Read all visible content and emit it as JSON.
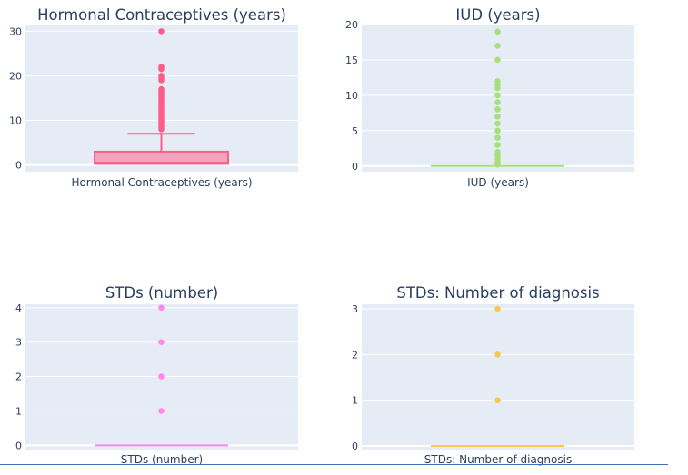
{
  "chart_data": [
    {
      "type": "box",
      "title": "Hormonal Contraceptives (years)",
      "xlabel": "Hormonal Contraceptives (years)",
      "ylim": [
        -1.5,
        31.5
      ],
      "yticks": [
        0,
        10,
        20,
        30
      ],
      "color": "#ff5c8a",
      "fill": "#f3a5bf",
      "box": {
        "q1": 0.25,
        "median": 0.5,
        "q3": 3,
        "lower_whisker": 0,
        "upper_whisker": 7
      },
      "outliers": [
        8,
        8.5,
        9,
        9.5,
        10,
        10.5,
        11,
        11.5,
        12,
        12.5,
        13,
        13.5,
        14,
        14.5,
        15,
        15.5,
        16,
        16.5,
        17,
        19,
        19.5,
        20,
        21.5,
        22,
        30
      ]
    },
    {
      "type": "box",
      "title": "IUD (years)",
      "xlabel": "IUD (years)",
      "ylim": [
        -0.8,
        20
      ],
      "yticks": [
        0,
        5,
        10,
        15,
        20
      ],
      "color": "#a6e07c",
      "fill": "#a6e07c",
      "box": {
        "q1": 0,
        "median": 0,
        "q3": 0,
        "lower_whisker": 0,
        "upper_whisker": 0
      },
      "outliers": [
        0.2,
        0.5,
        1,
        1.5,
        2,
        3,
        4,
        5,
        6,
        7,
        8,
        9,
        10,
        11,
        11.5,
        12,
        15,
        17,
        19
      ]
    },
    {
      "type": "box",
      "title": "STDs (number)",
      "xlabel": "STDs (number)",
      "ylim": [
        -0.15,
        4.1
      ],
      "yticks": [
        0,
        1,
        2,
        3,
        4
      ],
      "color": "#ff88f0",
      "fill": "#ff88f0",
      "box": {
        "q1": 0,
        "median": 0,
        "q3": 0,
        "lower_whisker": 0,
        "upper_whisker": 0
      },
      "outliers": [
        1,
        2,
        3,
        4
      ]
    },
    {
      "type": "box",
      "title": "STDs: Number of diagnosis",
      "xlabel": "STDs: Number of diagnosis",
      "ylim": [
        -0.1,
        3.1
      ],
      "yticks": [
        0,
        1,
        2,
        3
      ],
      "color": "#f8c94c",
      "fill": "#f8c94c",
      "box": {
        "q1": 0,
        "median": 0,
        "q3": 0,
        "lower_whisker": 0,
        "upper_whisker": 0
      },
      "outliers": [
        1,
        2,
        3
      ]
    }
  ]
}
